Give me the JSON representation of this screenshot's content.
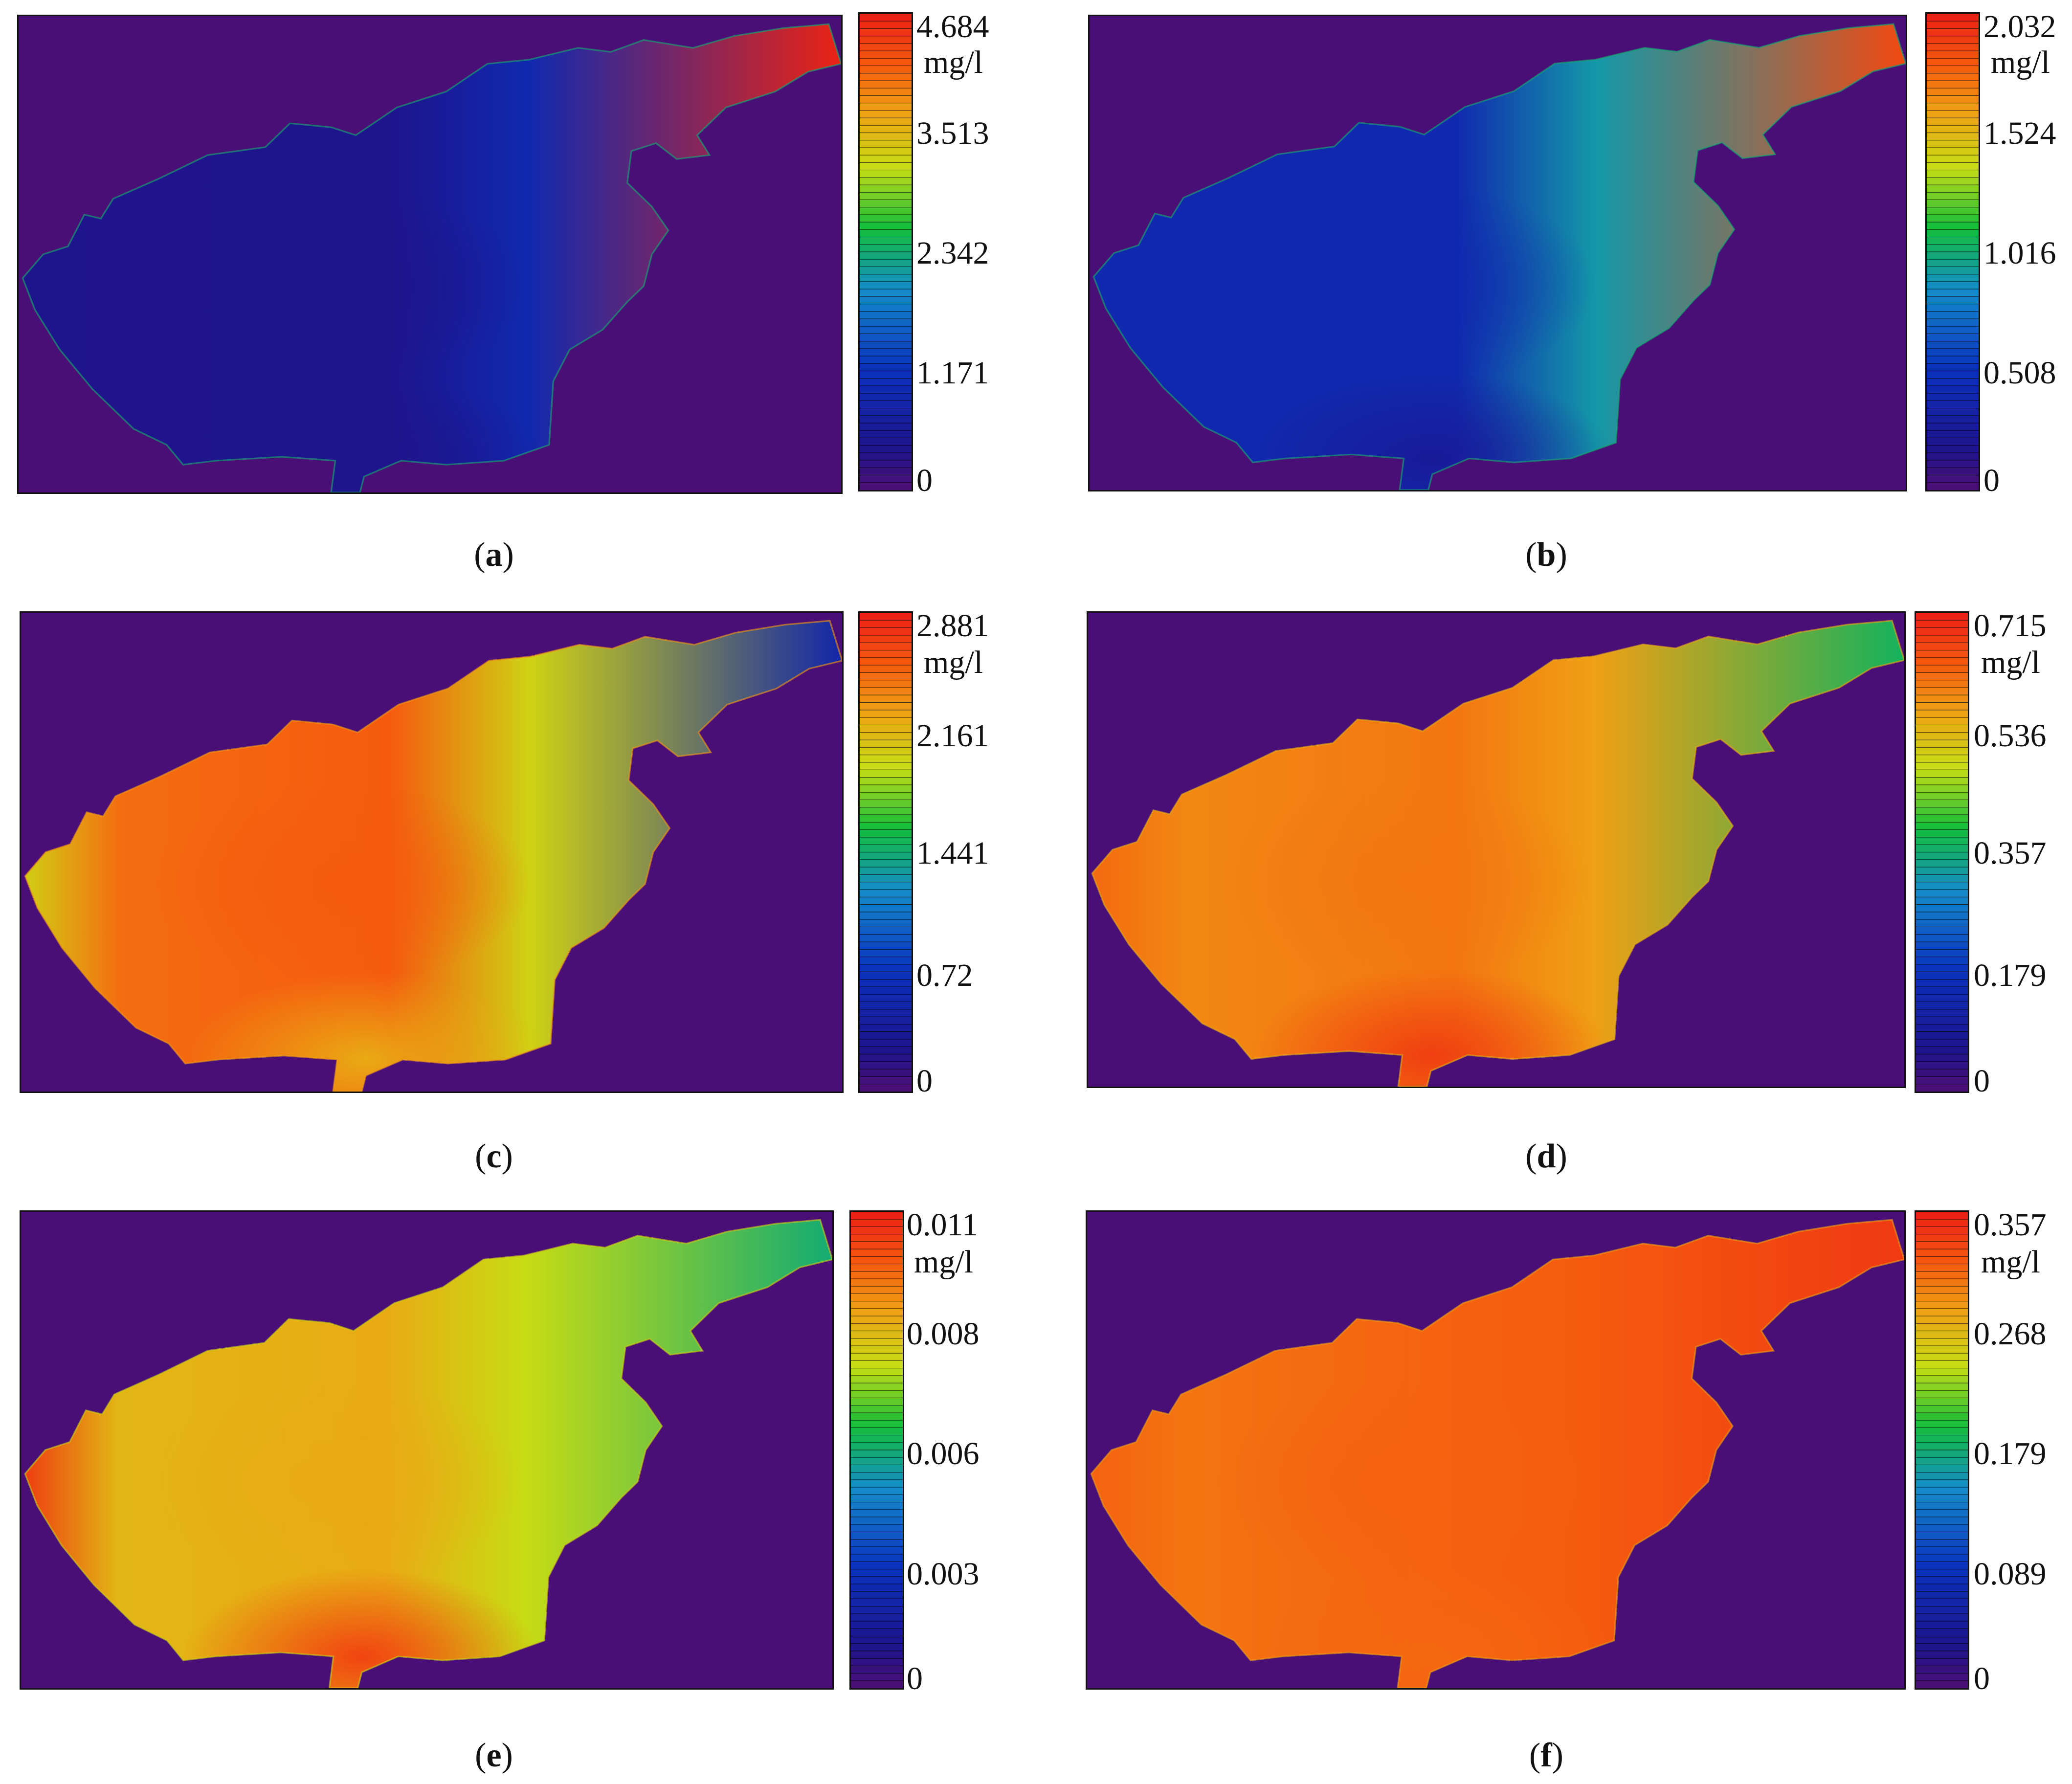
{
  "chart_data": [
    {
      "type": "heatmap",
      "panel": "a",
      "colorbar": {
        "unit": "mg/l",
        "ticks": [
          "4.684",
          "3.513",
          "2.342",
          "1.171",
          "0"
        ],
        "range": [
          0,
          4.684
        ]
      },
      "field": {
        "main_basin_level": 0.08,
        "east_gradient": [
          0.2,
          1.0
        ],
        "west_tip": 0.08,
        "south_outlet": 0.08
      }
    },
    {
      "type": "heatmap",
      "panel": "b",
      "colorbar": {
        "unit": "mg/l",
        "ticks": [
          "2.032",
          "1.524",
          "1.016",
          "0.508",
          "0"
        ],
        "range": [
          0,
          2.032
        ]
      },
      "field": {
        "main_basin_level": 0.2,
        "east_gradient": [
          0.45,
          0.93
        ],
        "west_tip": 0.2,
        "south_outlet": 0.12
      }
    },
    {
      "type": "heatmap",
      "panel": "c",
      "colorbar": {
        "unit": "mg/l",
        "ticks": [
          "2.881",
          "2.161",
          "1.441",
          "0.72",
          "0"
        ],
        "range": [
          0,
          2.881
        ]
      },
      "field": {
        "main_basin_level": 0.9,
        "east_gradient": [
          0.7,
          0.18
        ],
        "west_tip": 0.7,
        "south_outlet": 0.78
      }
    },
    {
      "type": "heatmap",
      "panel": "d",
      "colorbar": {
        "unit": "mg/l",
        "ticks": [
          "0.715",
          "0.536",
          "0.357",
          "0.179",
          "0"
        ],
        "range": [
          0,
          0.715
        ]
      },
      "field": {
        "main_basin_level": 0.86,
        "east_gradient": [
          0.8,
          0.52
        ],
        "west_tip": 0.88,
        "south_outlet": 0.95
      }
    },
    {
      "type": "heatmap",
      "panel": "e",
      "colorbar": {
        "unit": "mg/l",
        "ticks": [
          "0.011",
          "0.008",
          "0.006",
          "0.003",
          "0"
        ],
        "range": [
          0,
          0.011
        ]
      },
      "field": {
        "main_basin_level": 0.78,
        "east_gradient": [
          0.68,
          0.5
        ],
        "west_tip": 0.96,
        "south_outlet": 0.94
      }
    },
    {
      "type": "heatmap",
      "panel": "f",
      "colorbar": {
        "unit": "mg/l",
        "ticks": [
          "0.357",
          "0.268",
          "0.179",
          "0.089",
          "0"
        ],
        "range": [
          0,
          0.357
        ]
      },
      "field": {
        "main_basin_level": 0.89,
        "east_gradient": [
          0.9,
          0.96
        ],
        "west_tip": 0.89,
        "south_outlet": 0.88
      }
    }
  ],
  "captions": [
    {
      "open": "(",
      "letter": "a",
      "close": ")"
    },
    {
      "open": "(",
      "letter": "b",
      "close": ")"
    },
    {
      "open": "(",
      "letter": "c",
      "close": ")"
    },
    {
      "open": "(",
      "letter": "d",
      "close": ")"
    },
    {
      "open": "(",
      "letter": "e",
      "close": ")"
    },
    {
      "open": "(",
      "letter": "f",
      "close": ")"
    }
  ],
  "colors": {
    "background": "#4a0f77",
    "frame": "#111111"
  }
}
